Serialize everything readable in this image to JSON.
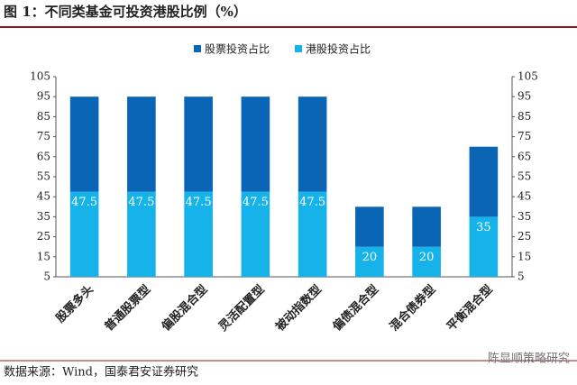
{
  "chart_data": {
    "type": "stacked_bar",
    "title": "图 1：不同类基金可投资港股比例（%）",
    "source": "数据来源：Wind，国泰君安证券研究",
    "watermark": "陈显顺策略研究",
    "categories": [
      "股票多头",
      "普通股票型",
      "偏股混合型",
      "灵活配置型",
      "被动指数型",
      "偏债混合型",
      "混合债券型",
      "平衡混合型"
    ],
    "series": [
      {
        "name": "港股投资占比",
        "color": "#16b2ea",
        "values": [
          47.5,
          47.5,
          47.5,
          47.5,
          47.5,
          20,
          20,
          35
        ],
        "labels": true
      },
      {
        "name": "股票投资占比",
        "color": "#0b65b5",
        "values": [
          47.5,
          47.5,
          47.5,
          47.5,
          47.5,
          20,
          20,
          35
        ],
        "labels": false
      }
    ],
    "legend_order": [
      1,
      0
    ],
    "ylim": [
      5,
      105
    ],
    "yticks": [
      5,
      15,
      25,
      35,
      45,
      55,
      65,
      75,
      85,
      95,
      105
    ],
    "y2lim": [
      5,
      105
    ],
    "y2ticks": [
      5,
      15,
      25,
      35,
      45,
      55,
      65,
      75,
      85,
      95,
      105
    ],
    "grid": false
  }
}
